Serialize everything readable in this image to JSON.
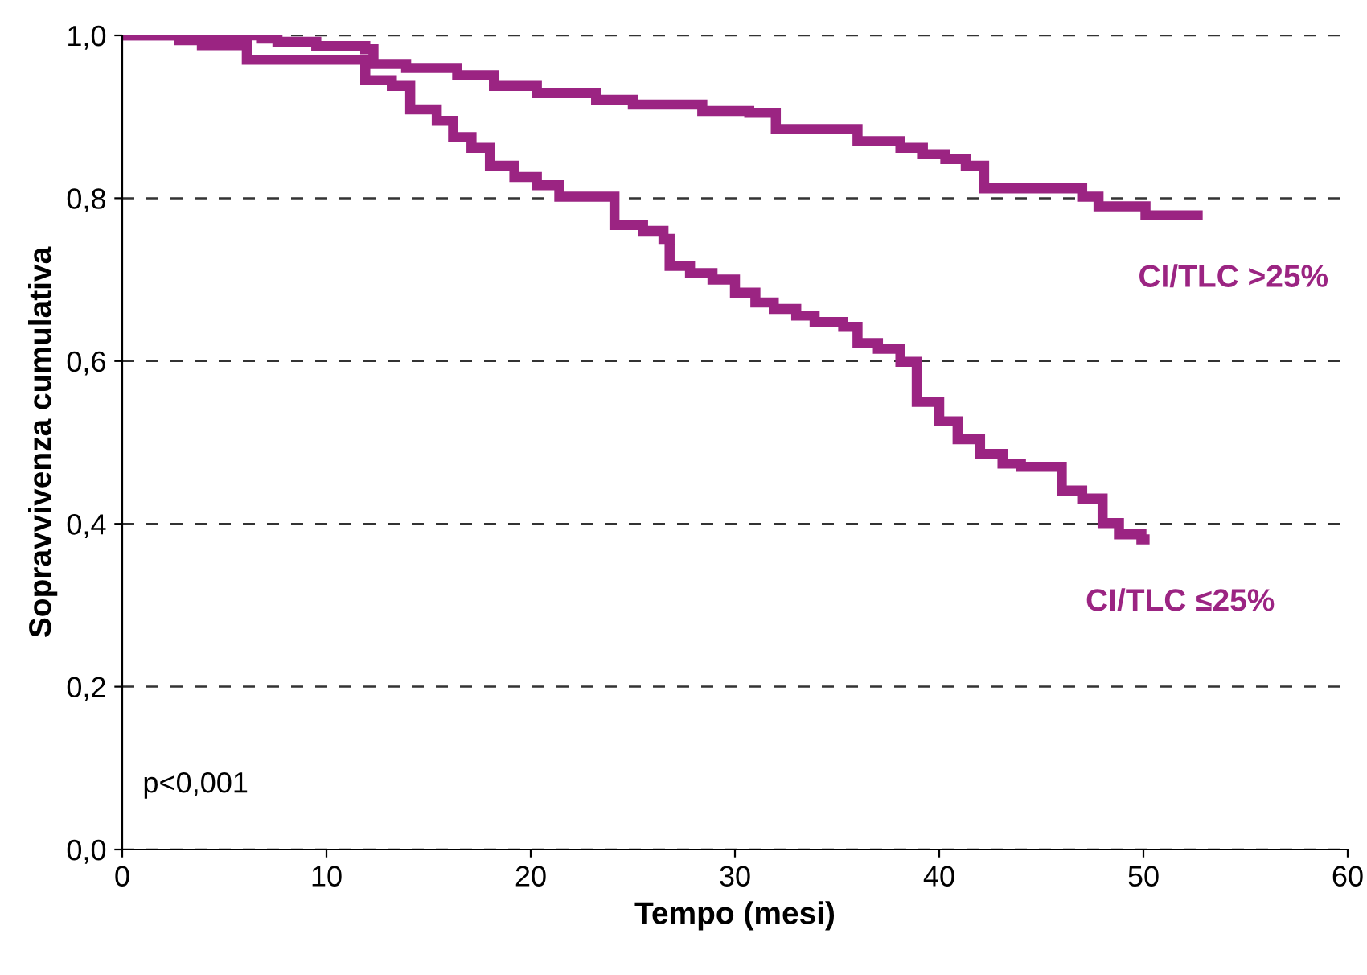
{
  "chart_data": {
    "type": "step",
    "xlabel": "Tempo (mesi)",
    "ylabel": "Sopravvivenza cumulativa",
    "xlim": [
      0,
      60
    ],
    "ylim": [
      0,
      1.0
    ],
    "xticks": [
      0,
      10,
      20,
      30,
      40,
      50,
      60
    ],
    "yticks": [
      {
        "value": 0,
        "label": "0,0"
      },
      {
        "value": 0.2,
        "label": "0,2"
      },
      {
        "value": 0.4,
        "label": "0,4"
      },
      {
        "value": 0.6,
        "label": "0,6"
      },
      {
        "value": 0.8,
        "label": "0,8"
      },
      {
        "value": 1.0,
        "label": "1,0"
      }
    ],
    "grid": "y",
    "marker": "none",
    "line_style": "solid",
    "annotations": [
      "p<0,001"
    ],
    "series": [
      {
        "name": "CI/TLC >25%",
        "color": "#9b2482",
        "x": [
          0,
          6.8,
          7.6,
          9.5,
          11.9,
          12.3,
          13.9,
          16.4,
          18.2,
          20.3,
          23.2,
          25,
          28.4,
          30.7,
          32,
          36,
          38.1,
          39.2,
          40.3,
          41.3,
          42.2,
          47,
          47.8,
          50.1,
          52.9
        ],
        "values": [
          1.0,
          0.996,
          0.992,
          0.987,
          0.983,
          0.965,
          0.96,
          0.951,
          0.938,
          0.929,
          0.921,
          0.915,
          0.907,
          0.905,
          0.885,
          0.87,
          0.862,
          0.854,
          0.848,
          0.84,
          0.812,
          0.802,
          0.79,
          0.779,
          0.779
        ]
      },
      {
        "name": "CI/TLC ≤25%",
        "color": "#9b2482",
        "x": [
          0,
          2.8,
          3.9,
          6.1,
          11.9,
          13.2,
          14.1,
          15.4,
          16.2,
          17.1,
          18,
          19.2,
          20.3,
          21.4,
          24.1,
          25.5,
          26.5,
          26.8,
          27.8,
          28.9,
          30,
          31,
          31.9,
          33,
          33.9,
          35.3,
          36,
          37,
          38.1,
          38.9,
          40,
          40.9,
          42,
          43.1,
          44,
          46,
          47,
          48,
          48.8,
          49.9,
          50.3
        ],
        "values": [
          1.0,
          0.994,
          0.988,
          0.97,
          0.945,
          0.938,
          0.909,
          0.895,
          0.875,
          0.862,
          0.84,
          0.826,
          0.816,
          0.802,
          0.767,
          0.76,
          0.75,
          0.717,
          0.708,
          0.7,
          0.684,
          0.672,
          0.664,
          0.656,
          0.648,
          0.642,
          0.622,
          0.615,
          0.599,
          0.55,
          0.526,
          0.504,
          0.486,
          0.474,
          0.47,
          0.441,
          0.431,
          0.401,
          0.387,
          0.381,
          0.381
        ]
      }
    ]
  }
}
